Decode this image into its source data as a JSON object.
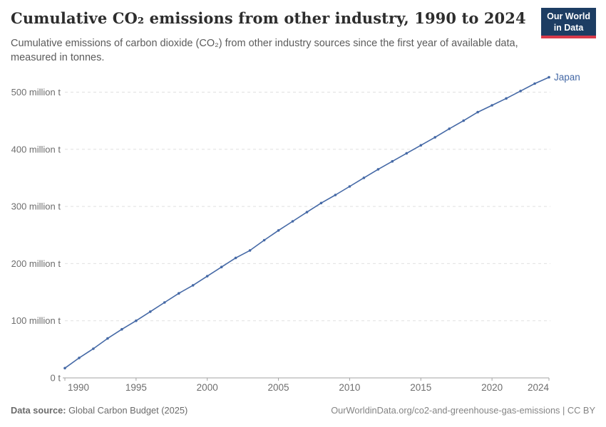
{
  "header": {
    "title": "Cumulative CO₂ emissions from other industry, 1990 to 2024",
    "logo": {
      "line1": "Our World",
      "line2": "in Data"
    }
  },
  "subtitle": "Cumulative emissions of carbon dioxide (CO₂) from other industry sources since the first year of available data, measured in tonnes.",
  "footer": {
    "source_label": "Data source:",
    "source_value": " Global Carbon Budget (2025)",
    "rights": "OurWorldinData.org/co2-and-greenhouse-gas-emissions | CC BY"
  },
  "colors": {
    "line": "#4569a6",
    "gridline": "#e0e0e0",
    "axis": "#a3a3a3",
    "tick_text": "#6e6e6e",
    "logo_bg": "#1d3d63",
    "logo_red": "#d93a4a"
  },
  "chart_data": {
    "type": "line",
    "title": "Cumulative CO₂ emissions from other industry, 1990 to 2024",
    "unit": "million tonnes",
    "ylabel": "",
    "xlabel": "",
    "grid": "dashed horizontal",
    "legend_position": "end-of-line label",
    "xlim": [
      1990,
      2024
    ],
    "ylim": [
      0,
      520
    ],
    "x_ticks": [
      1990,
      1995,
      2000,
      2005,
      2010,
      2015,
      2020,
      2024
    ],
    "y_ticks": [
      {
        "value": 0,
        "label": "0 t"
      },
      {
        "value": 100,
        "label": "100 million t"
      },
      {
        "value": 200,
        "label": "200 million t"
      },
      {
        "value": 300,
        "label": "300 million t"
      },
      {
        "value": 400,
        "label": "400 million t"
      },
      {
        "value": 500,
        "label": "500 million t"
      }
    ],
    "series": [
      {
        "name": "Japan",
        "x": [
          1990,
          1991,
          1992,
          1993,
          1994,
          1995,
          1996,
          1997,
          1998,
          1999,
          2000,
          2001,
          2002,
          2003,
          2004,
          2005,
          2006,
          2007,
          2008,
          2009,
          2010,
          2011,
          2012,
          2013,
          2014,
          2015,
          2016,
          2017,
          2018,
          2019,
          2020,
          2021,
          2022,
          2023,
          2024
        ],
        "values": [
          17,
          35,
          51,
          69,
          85,
          100,
          116,
          132,
          148,
          162,
          178,
          194,
          210,
          223,
          241,
          258,
          274,
          290,
          306,
          320,
          335,
          350,
          365,
          379,
          393,
          407,
          421,
          436,
          450,
          465,
          477,
          489,
          502,
          515,
          526
        ]
      }
    ]
  }
}
